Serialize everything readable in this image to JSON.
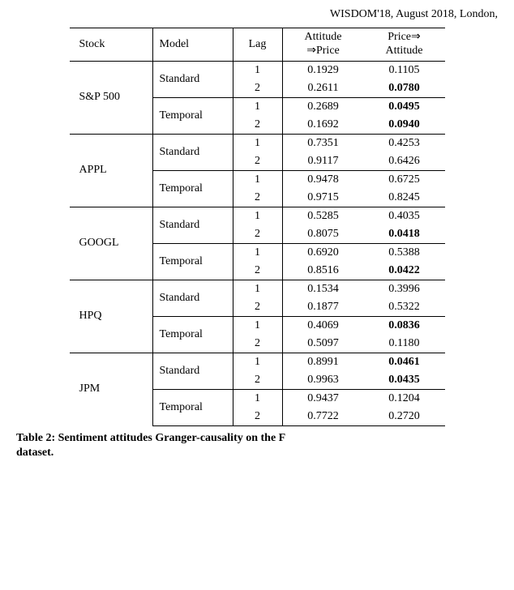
{
  "header_line": "WISDOM'18, August 2018, London,",
  "columns": {
    "stock": "Stock",
    "model": "Model",
    "lag": "Lag",
    "att_price_l1": "Attitude",
    "att_price_l2": "⇒Price",
    "price_att_l1": "Price⇒",
    "price_att_l2": "Attitude"
  },
  "groups": [
    {
      "stock": "S&P 500",
      "models": [
        {
          "model": "Standard",
          "rows": [
            {
              "lag": "1",
              "ap": "0.1929",
              "pa": "0.1105",
              "pa_bold": false
            },
            {
              "lag": "2",
              "ap": "0.2611",
              "pa": "0.0780",
              "pa_bold": true
            }
          ]
        },
        {
          "model": "Temporal",
          "rows": [
            {
              "lag": "1",
              "ap": "0.2689",
              "pa": "0.0495",
              "pa_bold": true
            },
            {
              "lag": "2",
              "ap": "0.1692",
              "pa": "0.0940",
              "pa_bold": true
            }
          ]
        }
      ]
    },
    {
      "stock": "APPL",
      "models": [
        {
          "model": "Standard",
          "rows": [
            {
              "lag": "1",
              "ap": "0.7351",
              "pa": "0.4253",
              "pa_bold": false
            },
            {
              "lag": "2",
              "ap": "0.9117",
              "pa": "0.6426",
              "pa_bold": false
            }
          ]
        },
        {
          "model": "Temporal",
          "rows": [
            {
              "lag": "1",
              "ap": "0.9478",
              "pa": "0.6725",
              "pa_bold": false
            },
            {
              "lag": "2",
              "ap": "0.9715",
              "pa": "0.8245",
              "pa_bold": false
            }
          ]
        }
      ]
    },
    {
      "stock": "GOOGL",
      "models": [
        {
          "model": "Standard",
          "rows": [
            {
              "lag": "1",
              "ap": "0.5285",
              "pa": "0.4035",
              "pa_bold": false
            },
            {
              "lag": "2",
              "ap": "0.8075",
              "pa": "0.0418",
              "pa_bold": true
            }
          ]
        },
        {
          "model": "Temporal",
          "rows": [
            {
              "lag": "1",
              "ap": "0.6920",
              "pa": "0.5388",
              "pa_bold": false
            },
            {
              "lag": "2",
              "ap": "0.8516",
              "pa": "0.0422",
              "pa_bold": true
            }
          ]
        }
      ]
    },
    {
      "stock": "HPQ",
      "models": [
        {
          "model": "Standard",
          "rows": [
            {
              "lag": "1",
              "ap": "0.1534",
              "pa": "0.3996",
              "pa_bold": false
            },
            {
              "lag": "2",
              "ap": "0.1877",
              "pa": "0.5322",
              "pa_bold": false
            }
          ]
        },
        {
          "model": "Temporal",
          "rows": [
            {
              "lag": "1",
              "ap": "0.4069",
              "pa": "0.0836",
              "pa_bold": true
            },
            {
              "lag": "2",
              "ap": "0.5097",
              "pa": "0.1180",
              "pa_bold": false
            }
          ]
        }
      ]
    },
    {
      "stock": "JPM",
      "models": [
        {
          "model": "Standard",
          "rows": [
            {
              "lag": "1",
              "ap": "0.8991",
              "pa": "0.0461",
              "pa_bold": true
            },
            {
              "lag": "2",
              "ap": "0.9963",
              "pa": "0.0435",
              "pa_bold": true
            }
          ]
        },
        {
          "model": "Temporal",
          "rows": [
            {
              "lag": "1",
              "ap": "0.9437",
              "pa": "0.1204",
              "pa_bold": false
            },
            {
              "lag": "2",
              "ap": "0.7722",
              "pa": "0.2720",
              "pa_bold": false
            }
          ]
        }
      ]
    }
  ],
  "caption": "Table 2: Sentiment attitudes Granger-causality on the F",
  "caption_l2": "dataset."
}
